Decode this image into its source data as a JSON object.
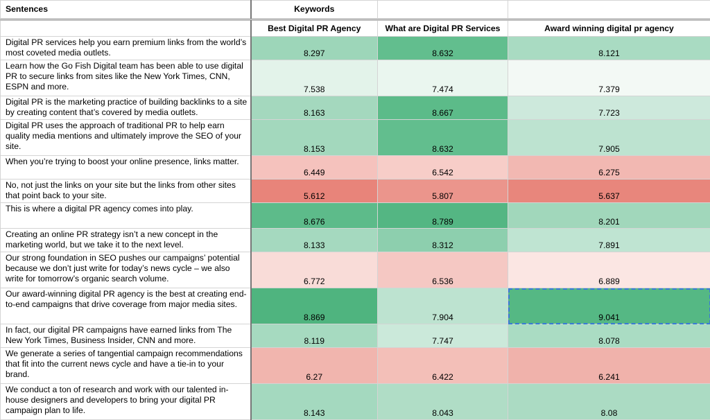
{
  "header": {
    "col_sentences": "Sentences",
    "col_keywords": "Keywords",
    "keyword_headers": [
      "Best Digital PR Agency",
      "What are Digital PR Services",
      "Award winning digital pr agency"
    ]
  },
  "rows": [
    {
      "sentence": "Digital PR services help you earn premium links from the world’s most coveted media outlets.",
      "values": [
        "8.297",
        "8.632",
        "8.121"
      ],
      "colors": [
        "#9dd6b9",
        "#62be8e",
        "#a9dbc2"
      ],
      "lines": 2
    },
    {
      "sentence": "Learn how the Go Fish Digital team has been able to use digital PR to secure links from sites like the New York Times, CNN, ESPN and more.",
      "values": [
        "7.538",
        "7.474",
        "7.379"
      ],
      "colors": [
        "#e3f3ea",
        "#eaf6ef",
        "#f3f9f5"
      ],
      "lines": 3
    },
    {
      "sentence": "Digital PR is the marketing practice of building backlinks to a site by creating content that’s covered by media outlets.",
      "values": [
        "8.163",
        "8.667",
        "7.723"
      ],
      "colors": [
        "#a4d8be",
        "#5cbb89",
        "#cde9dc"
      ],
      "lines": 2
    },
    {
      "sentence": "Digital PR uses the approach of traditional PR to help earn quality media mentions and ultimately improve the SEO of your site.",
      "values": [
        "8.153",
        "8.632",
        "7.905"
      ],
      "colors": [
        "#a3d8bd",
        "#62be8e",
        "#bde3d0"
      ],
      "lines": 3
    },
    {
      "sentence": "When you’re trying to boost your online presence, links matter.",
      "values": [
        "6.449",
        "6.542",
        "6.275"
      ],
      "colors": [
        "#f5c2bd",
        "#f7cdc8",
        "#f2b8b2"
      ],
      "lines": 2
    },
    {
      "sentence": "No, not just the links on your site but the links from other sites that point back to your site.",
      "values": [
        "5.612",
        "5.807",
        "5.637"
      ],
      "colors": [
        "#e8847a",
        "#eb958c",
        "#e8867c"
      ],
      "lines": 2
    },
    {
      "sentence": "This is where a digital PR agency comes into play.",
      "values": [
        "8.676",
        "8.789",
        "8.201"
      ],
      "colors": [
        "#5dbb8a",
        "#54b683",
        "#a1d7bb"
      ],
      "lines": 1
    },
    {
      "sentence": "Creating an online PR strategy isn’t a new concept in the marketing world, but we take it to the next level.",
      "values": [
        "8.133",
        "8.312",
        "7.891"
      ],
      "colors": [
        "#a5d9bf",
        "#8dcfae",
        "#bfe4d2"
      ],
      "lines": 2
    },
    {
      "sentence": "Our strong foundation in SEO pushes our campaigns’ potential because we don’t just write for today’s news cycle – we also write for tomorrow’s organic search volume.",
      "values": [
        "6.772",
        "6.536",
        "6.889"
      ],
      "colors": [
        "#f9dcd8",
        "#f5c8c3",
        "#fbe6e3"
      ],
      "lines": 3
    },
    {
      "sentence": "Our award-winning digital PR agency is the best at creating end-to-end campaigns that drive coverage from major media sites.",
      "values": [
        "8.869",
        "7.904",
        "9.041"
      ],
      "colors": [
        "#4fb47f",
        "#bde3d0",
        "#55b884"
      ],
      "lines": 3
    },
    {
      "sentence": "In fact, our digital PR campaigns have earned links from The New York Times, Business Insider, CNN and more.",
      "values": [
        "8.119",
        "7.747",
        "8.078"
      ],
      "colors": [
        "#a6dac0",
        "#cbe9da",
        "#aadcc3"
      ],
      "lines": 2
    },
    {
      "sentence": "We generate a series of tangential campaign recommendations that fit into the current news cycle and have a tie-in to your brand.",
      "values": [
        "6.27",
        "6.422",
        "6.241"
      ],
      "colors": [
        "#f1b5ae",
        "#f3bfb8",
        "#f0b2ab"
      ],
      "lines": 3
    },
    {
      "sentence": "We conduct a ton of research and work with our talented in-house designers and developers to bring your digital PR campaign plan to life.",
      "values": [
        "8.143",
        "8.043",
        "8.08"
      ],
      "colors": [
        "#a4d9bf",
        "#b0ddc6",
        "#abdbc3"
      ],
      "lines": 3
    }
  ]
}
